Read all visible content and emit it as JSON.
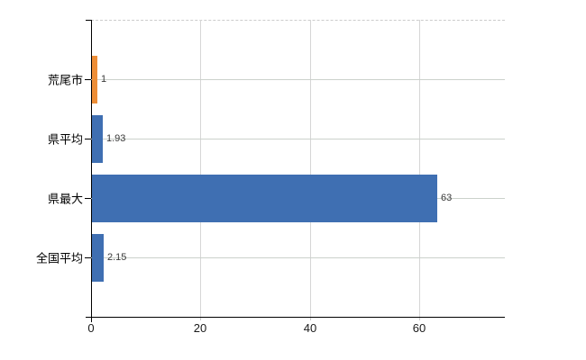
{
  "chart_data": {
    "type": "bar",
    "orientation": "horizontal",
    "title": "",
    "categories": [
      "荒尾市",
      "県平均",
      "県最大",
      "全国平均"
    ],
    "values": [
      1,
      1.93,
      63,
      2.15
    ],
    "value_labels": [
      "1",
      "1.93",
      "63",
      "2.15"
    ],
    "bar_colors": [
      "#ED8E37",
      "#3F6FB2",
      "#3F6FB2",
      "#3F6FB2"
    ],
    "x_ticks": [
      0,
      20,
      40,
      60
    ],
    "x_tick_labels": [
      "0",
      "20",
      "40",
      "60"
    ],
    "xlim": [
      0,
      75.6
    ],
    "grid": "vertical gridlines at x ticks; horizontal guide line at each category center; dashed top border",
    "legend": "none"
  },
  "colors": {
    "background": "#FFFFFF",
    "axis": "#000000",
    "vertical_gridline": "#D6D6D6",
    "horizontal_gridline": "#CBD1CB",
    "top_border_dashed": "#CCCCCC",
    "value_label_text": "#3A3A3A",
    "category_label_text": "#000000",
    "bar_blue": "#3F6FB2",
    "bar_orange": "#ED8E37"
  }
}
